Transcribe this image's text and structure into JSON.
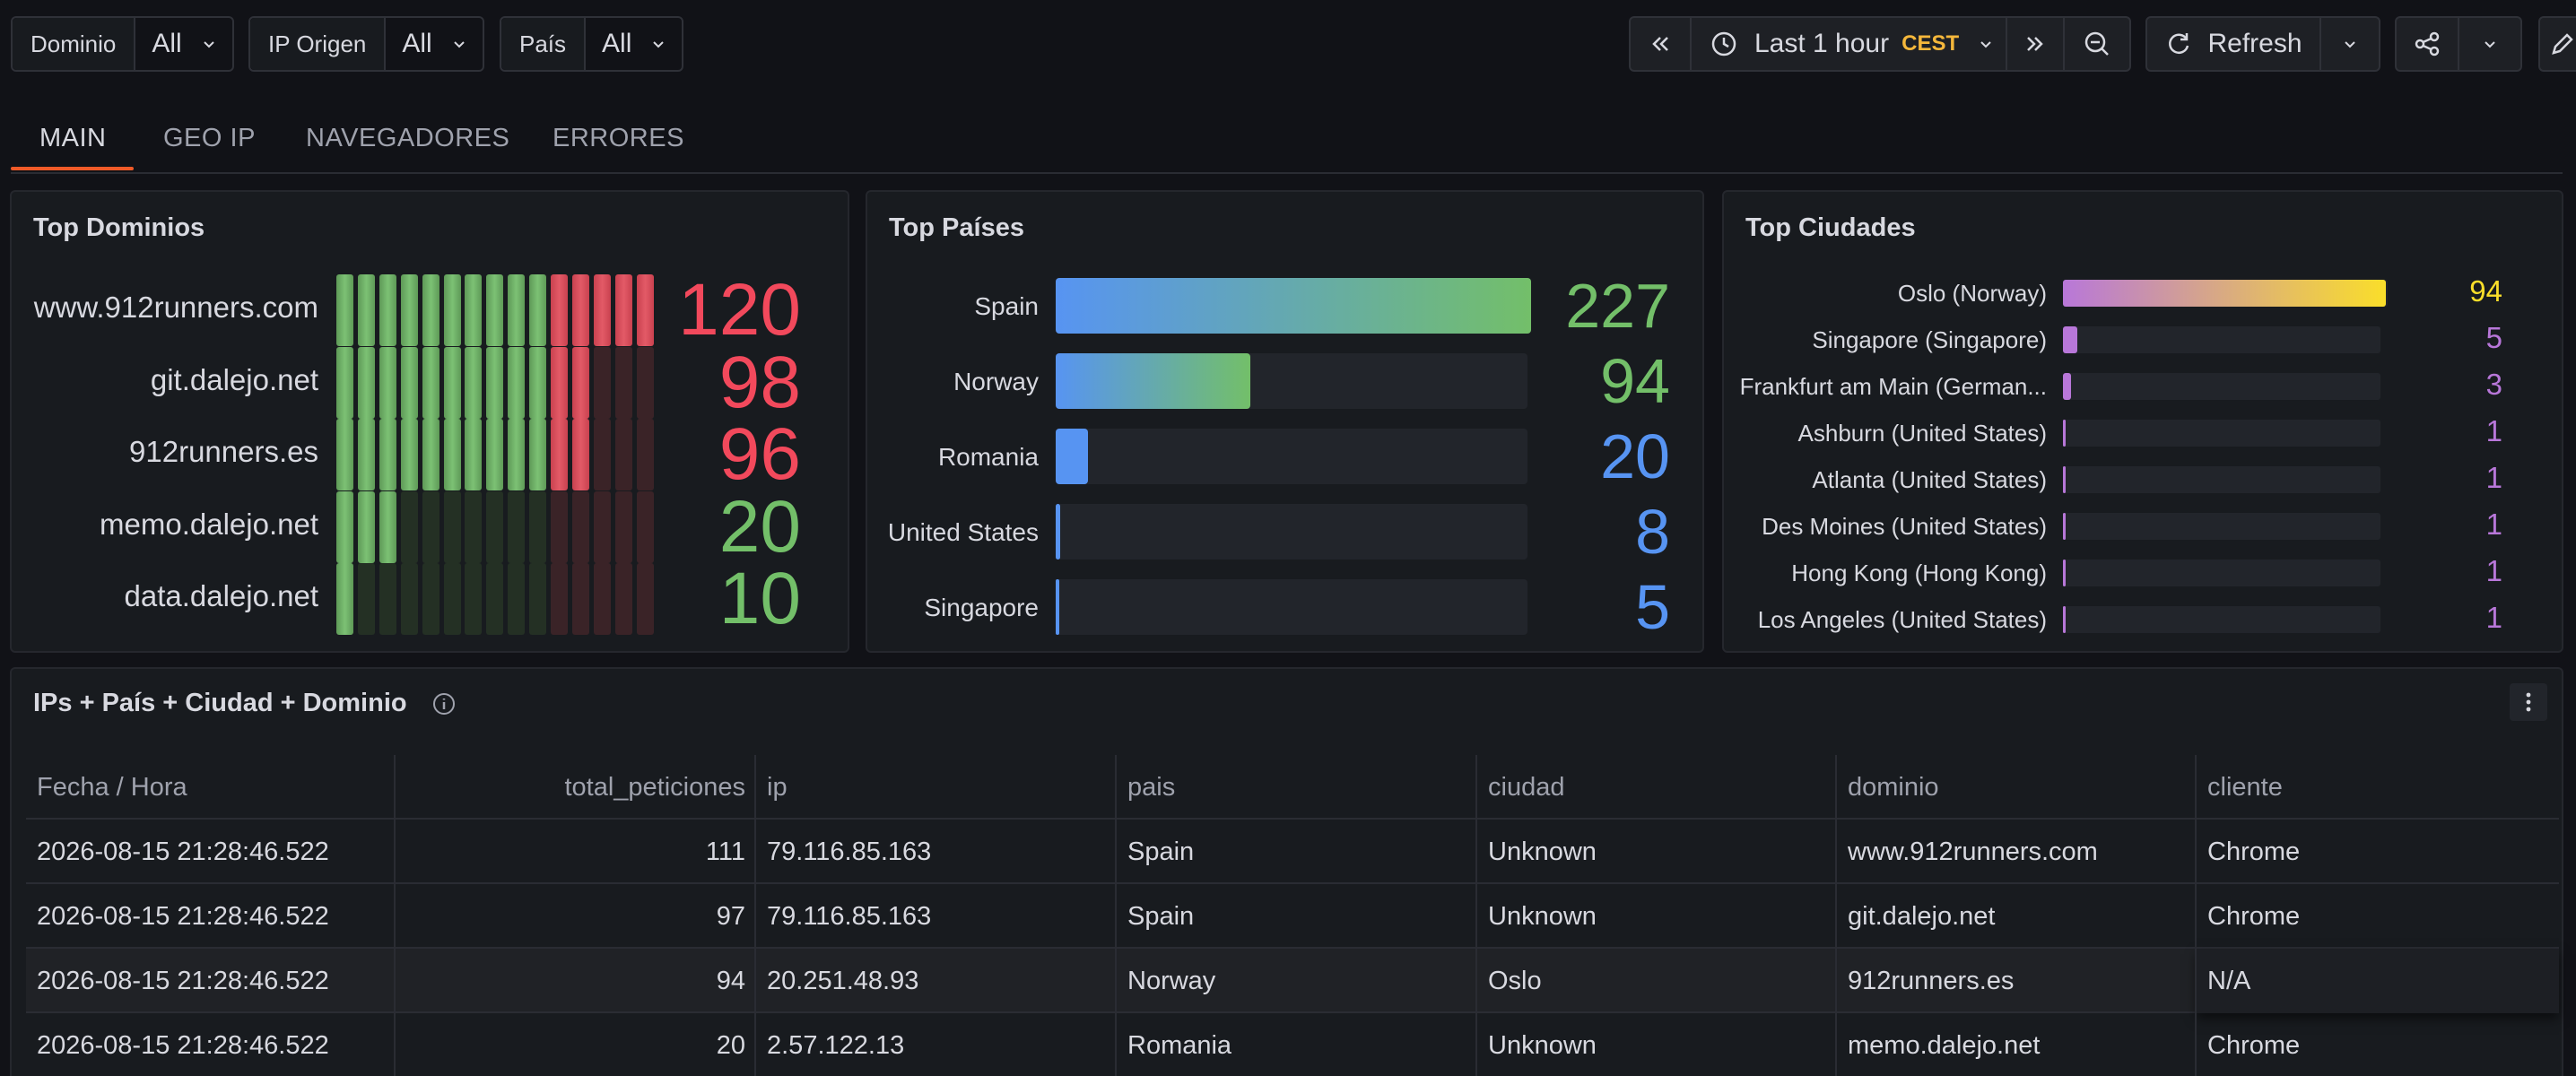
{
  "filters": [
    {
      "label": "Dominio",
      "value": "All"
    },
    {
      "label": "IP Origen",
      "value": "All"
    },
    {
      "label": "País",
      "value": "All"
    }
  ],
  "time_picker": {
    "label": "Last 1 hour",
    "timezone": "CEST"
  },
  "refresh": {
    "label": "Refresh"
  },
  "tabs": [
    "MAIN",
    "GEO IP",
    "NAVEGADORES",
    "ERRORES"
  ],
  "colors": {
    "green": "#73bf69",
    "red": "#f2495c",
    "blue": "#5794f2",
    "purple": "#b877d9",
    "yellow": "#fade2a",
    "orange": "#f05a28"
  },
  "top_dominios": {
    "title": "Top Dominios",
    "items": [
      {
        "name": "www.912runners.com",
        "value": "120",
        "level": 1.0,
        "color": "red"
      },
      {
        "name": "git.dalejo.net",
        "value": "98",
        "level": 0.82,
        "color": "red"
      },
      {
        "name": "912runners.es",
        "value": "96",
        "level": 0.8,
        "color": "red"
      },
      {
        "name": "memo.dalejo.net",
        "value": "20",
        "level": 0.17,
        "color": "green"
      },
      {
        "name": "data.dalejo.net",
        "value": "10",
        "level": 0.08,
        "color": "green"
      }
    ]
  },
  "top_paises": {
    "title": "Top Países",
    "items": [
      {
        "name": "Spain",
        "value": "227",
        "fraction": 1.0,
        "color": "green"
      },
      {
        "name": "Norway",
        "value": "94",
        "fraction": 0.41,
        "color": "green"
      },
      {
        "name": "Romania",
        "value": "20",
        "fraction": 0.068,
        "color": "blue"
      },
      {
        "name": "United States",
        "value": "8",
        "fraction": 0.01,
        "color": "blue"
      },
      {
        "name": "Singapore",
        "value": "5",
        "fraction": 0.005,
        "color": "blue"
      }
    ]
  },
  "top_ciudades": {
    "title": "Top Ciudades",
    "items": [
      {
        "name": "Oslo (Norway)",
        "value": "94",
        "fraction": 1.0
      },
      {
        "name": "Singapore (Singapore)",
        "value": "5",
        "fraction": 0.045
      },
      {
        "name": "Frankfurt am Main (German...",
        "value": "3",
        "fraction": 0.025
      },
      {
        "name": "Ashburn (United States)",
        "value": "1",
        "fraction": 0.006
      },
      {
        "name": "Atlanta (United States)",
        "value": "1",
        "fraction": 0.006
      },
      {
        "name": "Des Moines (United States)",
        "value": "1",
        "fraction": 0.006
      },
      {
        "name": "Hong Kong (Hong Kong)",
        "value": "1",
        "fraction": 0.006
      },
      {
        "name": "Los Angeles (United States)",
        "value": "1",
        "fraction": 0.006
      }
    ]
  },
  "table": {
    "title": "IPs + País + Ciudad + Dominio",
    "columns": [
      "Fecha / Hora",
      "total_peticiones",
      "ip",
      "pais",
      "ciudad",
      "dominio",
      "cliente"
    ],
    "rows": [
      [
        "2026-08-15 21:28:46.522",
        "111",
        "79.116.85.163",
        "Spain",
        "Unknown",
        "www.912runners.com",
        "Chrome"
      ],
      [
        "2026-08-15 21:28:46.522",
        "97",
        "79.116.85.163",
        "Spain",
        "Unknown",
        "git.dalejo.net",
        "Chrome"
      ],
      [
        "2026-08-15 21:28:46.522",
        "94",
        "20.251.48.93",
        "Norway",
        "Oslo",
        "912runners.es",
        "N/A"
      ],
      [
        "2026-08-15 21:28:46.522",
        "20",
        "2.57.122.13",
        "Romania",
        "Unknown",
        "memo.dalejo.net",
        "Chrome"
      ]
    ]
  }
}
